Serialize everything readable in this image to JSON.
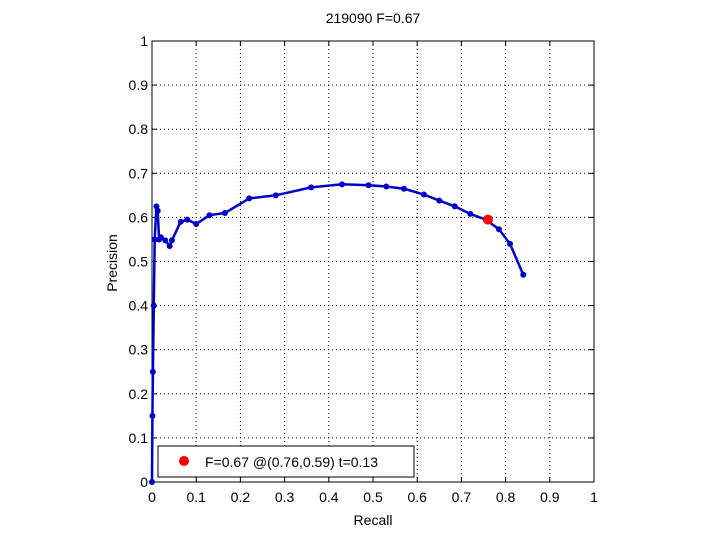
{
  "chart_data": {
    "type": "line",
    "title": "219090 F=0.67",
    "xlabel": "Recall",
    "ylabel": "Precision",
    "xlim": [
      0,
      1
    ],
    "ylim": [
      0,
      1
    ],
    "xticks": [
      0,
      0.1,
      0.2,
      0.3,
      0.4,
      0.5,
      0.6,
      0.7,
      0.8,
      0.9,
      1
    ],
    "yticks": [
      0,
      0.1,
      0.2,
      0.3,
      0.4,
      0.5,
      0.6,
      0.7,
      0.8,
      0.9,
      1
    ],
    "xtick_labels": [
      "0",
      "0.1",
      "0.2",
      "0.3",
      "0.4",
      "0.5",
      "0.6",
      "0.7",
      "0.8",
      "0.9",
      "1"
    ],
    "ytick_labels": [
      "0",
      "0.1",
      "0.2",
      "0.3",
      "0.4",
      "0.5",
      "0.6",
      "0.7",
      "0.8",
      "0.9",
      "1"
    ],
    "grid": true,
    "legend_position": "bottom-left",
    "series": [
      {
        "color": "#0000cc",
        "x": [
          0.0,
          0.001,
          0.002,
          0.004,
          0.006,
          0.01,
          0.013,
          0.016,
          0.02,
          0.03,
          0.04,
          0.045,
          0.065,
          0.08,
          0.1,
          0.13,
          0.165,
          0.22,
          0.28,
          0.36,
          0.43,
          0.49,
          0.53,
          0.57,
          0.615,
          0.65,
          0.685,
          0.72,
          0.755,
          0.785,
          0.81,
          0.84
        ],
        "y": [
          0.0,
          0.15,
          0.25,
          0.4,
          0.55,
          0.625,
          0.615,
          0.55,
          0.555,
          0.548,
          0.535,
          0.548,
          0.59,
          0.595,
          0.585,
          0.605,
          0.61,
          0.643,
          0.65,
          0.668,
          0.675,
          0.673,
          0.67,
          0.665,
          0.652,
          0.638,
          0.625,
          0.608,
          0.595,
          0.573,
          0.54,
          0.47
        ]
      }
    ],
    "highlight_point": {
      "x": 0.76,
      "y": 0.595,
      "color": "#ff0000"
    },
    "legend": {
      "label": "F=0.67 @(0.76,0.59) t=0.13",
      "marker_color": "#ff0000"
    }
  }
}
